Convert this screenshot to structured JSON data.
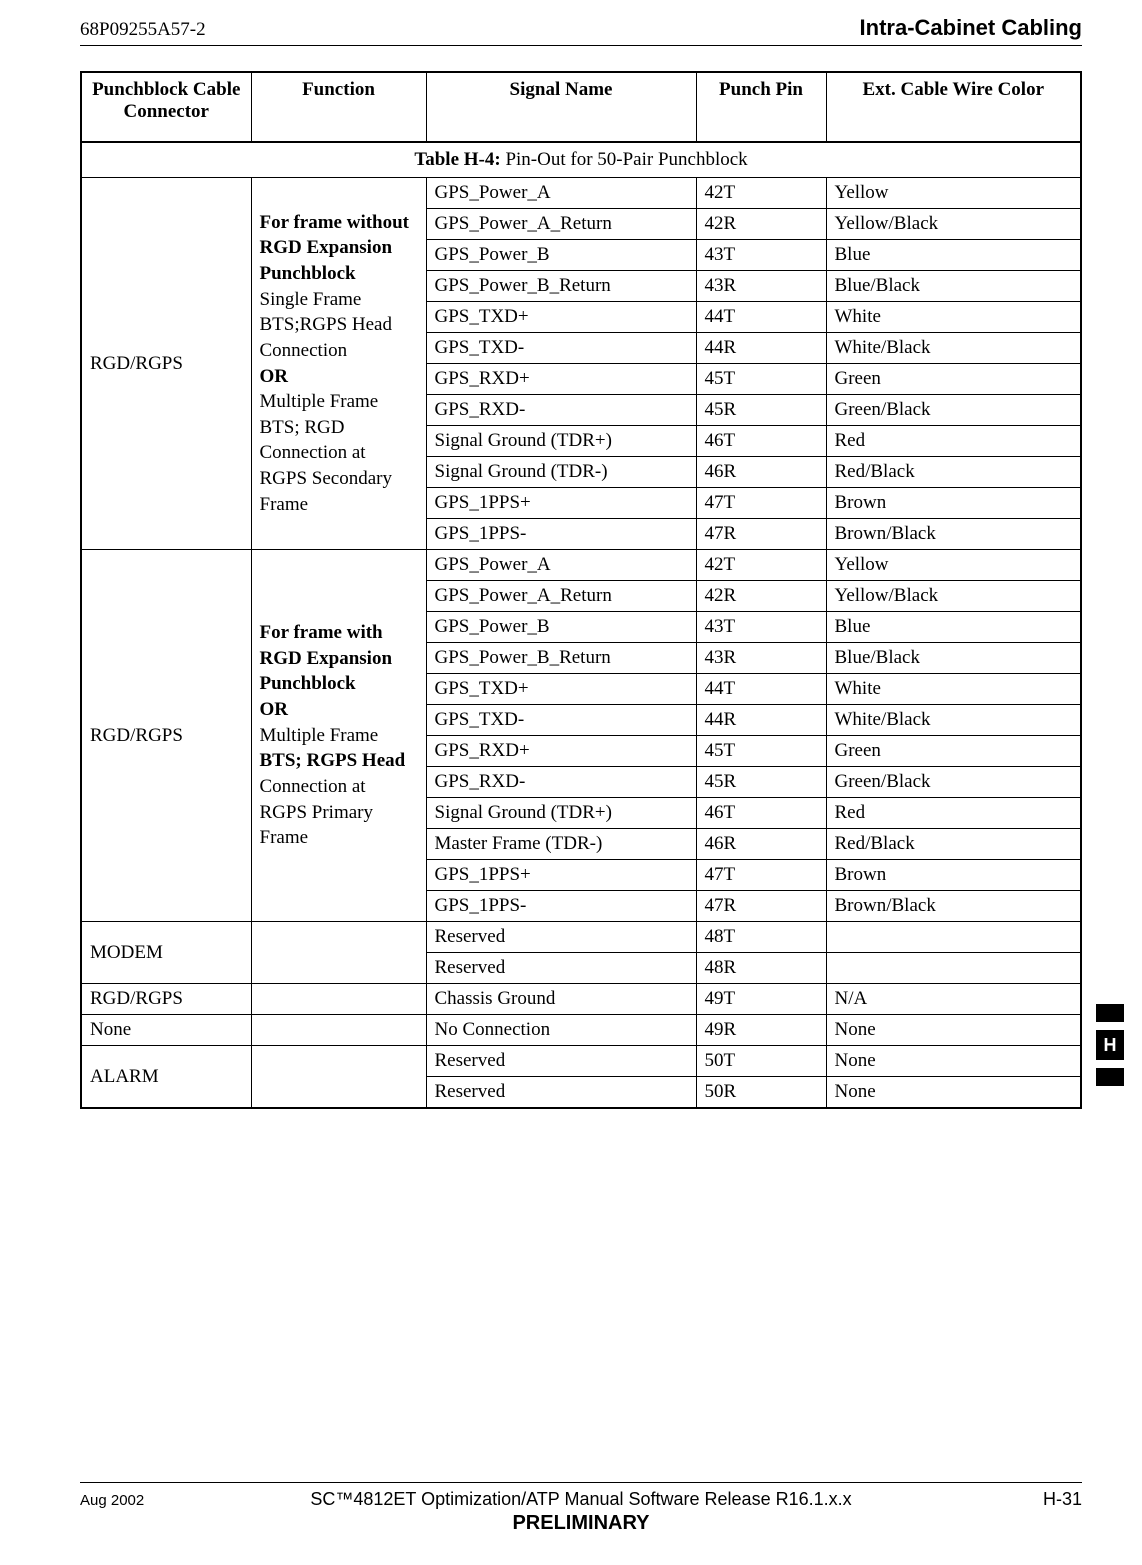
{
  "header": {
    "doc_id": "68P09255A57-2",
    "section": "Intra-Cabinet  Cabling"
  },
  "table": {
    "caption_bold": "Table H-4:",
    "caption_rest": " Pin-Out for 50-Pair Punchblock",
    "headers": {
      "connector": "Punchblock Cable Connector",
      "function": "Function",
      "signal": "Signal Name",
      "pin": "Punch Pin",
      "color": "Ext. Cable Wire Color"
    },
    "group1": {
      "connector": "RGD/RGPS",
      "func_html": "<b>For frame without RGD Expansion Punchblock</b><br>Single Frame BTS;RGPS Head Connection<br><b>OR</b><br>Multiple Frame BTS; RGD Connection at RGPS Secondary Frame",
      "rows": [
        {
          "signal": "GPS_Power_A",
          "pin": "42T",
          "color": "Yellow"
        },
        {
          "signal": "GPS_Power_A_Return",
          "pin": "42R",
          "color": "Yellow/Black"
        },
        {
          "signal": "GPS_Power_B",
          "pin": "43T",
          "color": "Blue"
        },
        {
          "signal": "GPS_Power_B_Return",
          "pin": "43R",
          "color": "Blue/Black"
        },
        {
          "signal": "GPS_TXD+",
          "pin": "44T",
          "color": "White"
        },
        {
          "signal": "GPS_TXD-",
          "pin": "44R",
          "color": "White/Black"
        },
        {
          "signal": "GPS_RXD+",
          "pin": "45T",
          "color": "Green"
        },
        {
          "signal": "GPS_RXD-",
          "pin": "45R",
          "color": "Green/Black"
        },
        {
          "signal": "Signal Ground (TDR+)",
          "pin": "46T",
          "color": "Red"
        },
        {
          "signal": "Signal Ground (TDR-)",
          "pin": "46R",
          "color": "Red/Black"
        },
        {
          "signal": "GPS_1PPS+",
          "pin": "47T",
          "color": "Brown"
        },
        {
          "signal": "GPS_1PPS-",
          "pin": "47R",
          "color": "Brown/Black"
        }
      ]
    },
    "group2": {
      "connector": "RGD/RGPS",
      "func_html": "<b>For frame with RGD Expansion Punchblock</b><br><b>OR</b><br>Multiple Frame <span style='font-weight:bold'>BTS; RGPS Head</span> Connection at RGPS Primary Frame",
      "rows": [
        {
          "signal": "GPS_Power_A",
          "pin": "42T",
          "color": "Yellow"
        },
        {
          "signal": "GPS_Power_A_Return",
          "pin": "42R",
          "color": "Yellow/Black"
        },
        {
          "signal": "GPS_Power_B",
          "pin": "43T",
          "color": "Blue"
        },
        {
          "signal": "GPS_Power_B_Return",
          "pin": "43R",
          "color": "Blue/Black"
        },
        {
          "signal": "GPS_TXD+",
          "pin": "44T",
          "color": "White"
        },
        {
          "signal": "GPS_TXD-",
          "pin": "44R",
          "color": "White/Black"
        },
        {
          "signal": "GPS_RXD+",
          "pin": "45T",
          "color": "Green"
        },
        {
          "signal": "GPS_RXD-",
          "pin": "45R",
          "color": "Green/Black"
        },
        {
          "signal": "Signal Ground (TDR+)",
          "pin": "46T",
          "color": "Red"
        },
        {
          "signal": "Master Frame (TDR-)",
          "pin": "46R",
          "color": "Red/Black"
        },
        {
          "signal": "GPS_1PPS+",
          "pin": "47T",
          "color": "Brown"
        },
        {
          "signal": "GPS_1PPS-",
          "pin": "47R",
          "color": "Brown/Black"
        }
      ]
    },
    "modem": {
      "connector": "MODEM",
      "rows": [
        {
          "signal": "Reserved",
          "pin": "48T",
          "color": ""
        },
        {
          "signal": "Reserved",
          "pin": "48R",
          "color": ""
        }
      ]
    },
    "rgd_single": {
      "connector": "RGD/RGPS",
      "signal": "Chassis Ground",
      "pin": "49T",
      "color": "N/A"
    },
    "none_row": {
      "connector": "None",
      "signal": "No Connection",
      "pin": "49R",
      "color": "None"
    },
    "alarm": {
      "connector": "ALARM",
      "rows": [
        {
          "signal": "Reserved",
          "pin": "50T",
          "color": "None"
        },
        {
          "signal": "Reserved",
          "pin": "50R",
          "color": "None"
        }
      ]
    }
  },
  "side_tab": "H",
  "footer": {
    "date": "Aug 2002",
    "center": "SC™4812ET Optimization/ATP Manual Software Release R16.1.x.x",
    "page": "H-31",
    "preliminary": "PRELIMINARY"
  }
}
